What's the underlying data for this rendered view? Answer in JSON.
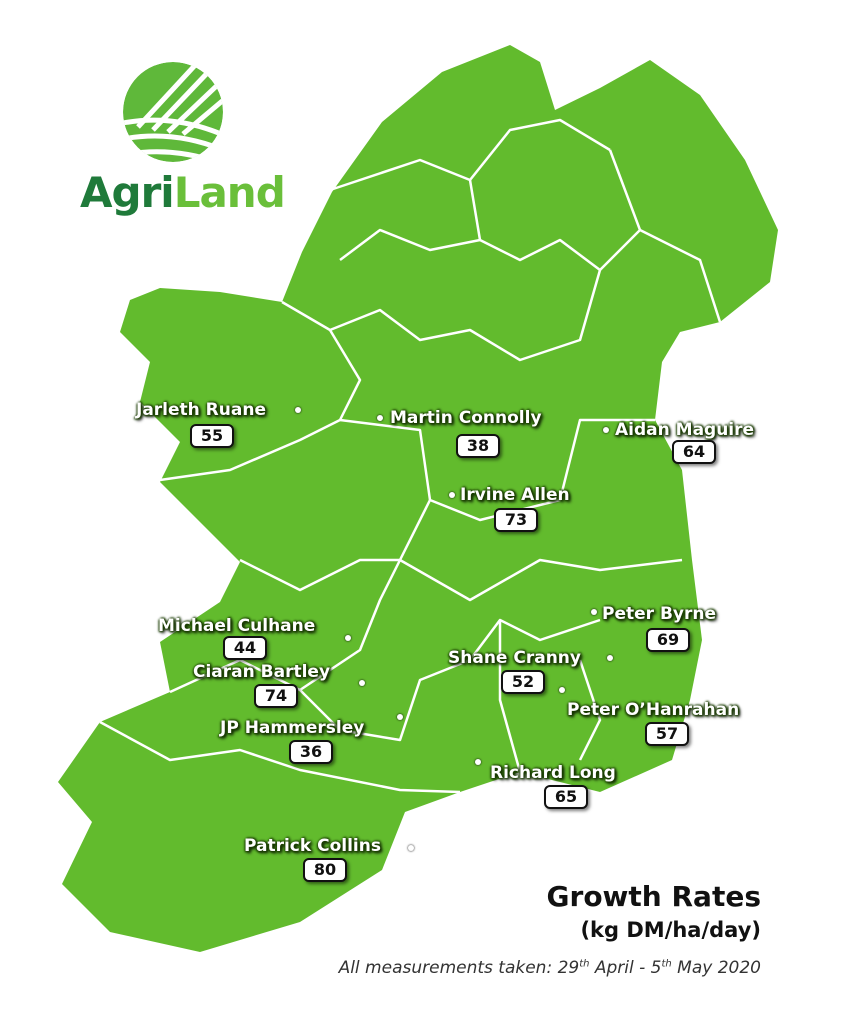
{
  "brand": {
    "logo_text_1": "Agri",
    "logo_text_2": "Land",
    "colors": {
      "dark_green": "#1f7a3a",
      "light_green": "#6abf3a",
      "map_green": "#62bb2d",
      "border": "#ffffff"
    }
  },
  "legend": {
    "title": "Growth Rates",
    "unit": "(kg DM/ha/day)",
    "note_prefix": "All measurements taken: 29",
    "note_sup1": "th",
    "note_mid": " April - 5",
    "note_sup2": "th",
    "note_suffix": " May 2020"
  },
  "farmers": [
    {
      "name": "Jarleth Ruane",
      "value": "55"
    },
    {
      "name": "Martin Connolly",
      "value": "38"
    },
    {
      "name": "Aidan Maguire",
      "value": "64"
    },
    {
      "name": "Irvine Allen",
      "value": "73"
    },
    {
      "name": "Michael Culhane",
      "value": "44"
    },
    {
      "name": "Ciaran Bartley",
      "value": "74"
    },
    {
      "name": "JP Hammersley",
      "value": "36"
    },
    {
      "name": "Peter Byrne",
      "value": "69"
    },
    {
      "name": "Shane Cranny",
      "value": "52"
    },
    {
      "name": "Peter O’Hanrahan",
      "value": "57"
    },
    {
      "name": "Richard Long",
      "value": "65"
    },
    {
      "name": "Patrick Collins",
      "value": "80"
    }
  ]
}
